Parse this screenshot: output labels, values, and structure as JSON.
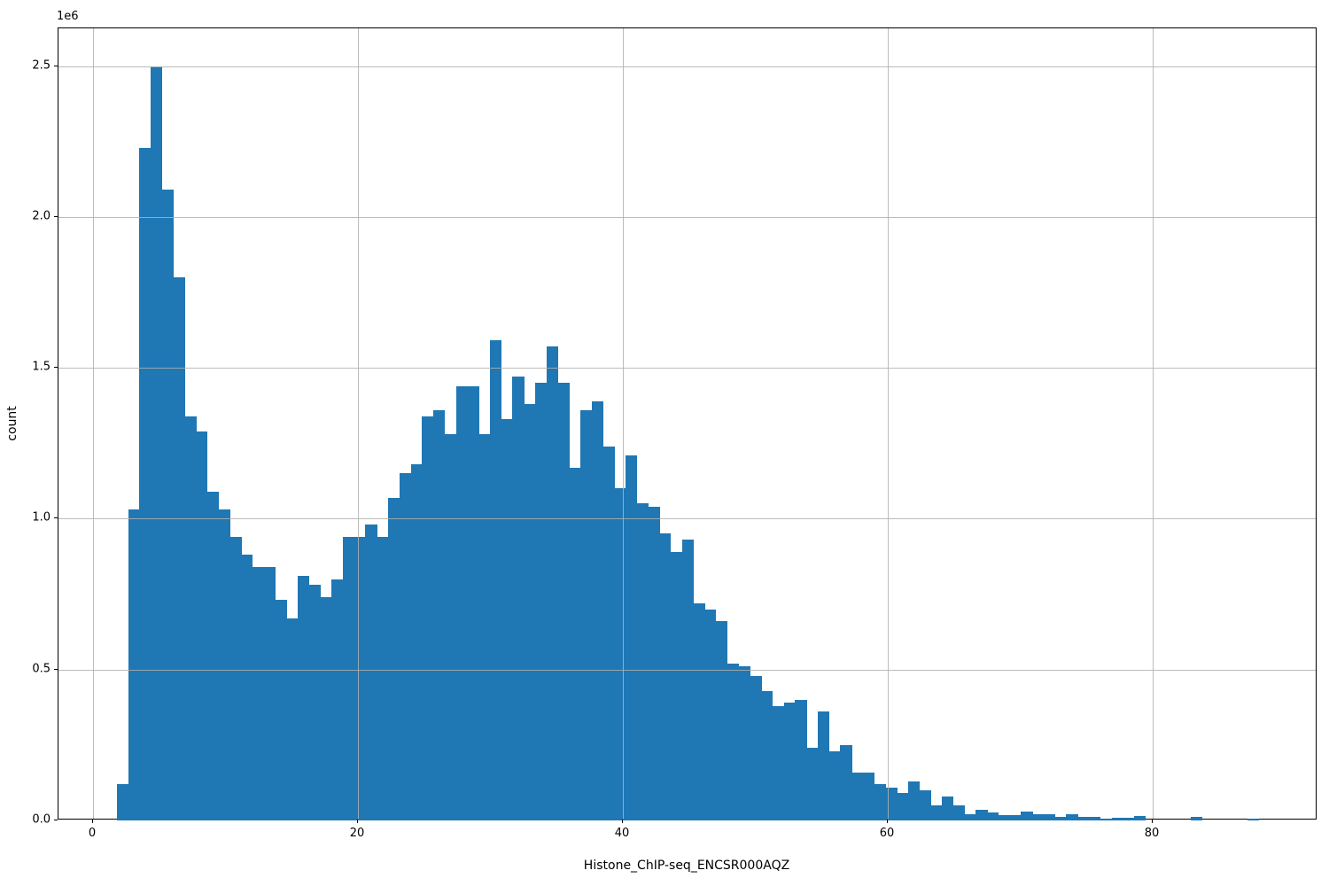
{
  "figure": {
    "background": "#ffffff"
  },
  "chart_data": {
    "type": "bar",
    "subtype": "histogram",
    "title": "",
    "xlabel": "Histone_ChIP-seq_ENCSR000AQZ",
    "ylabel": "count",
    "y_offset_text": "1e6",
    "x_tick_labels": [
      "0",
      "20",
      "40",
      "60",
      "80"
    ],
    "x_tick_values": [
      0,
      20,
      40,
      60,
      80
    ],
    "y_tick_labels": [
      "0.0",
      "0.5",
      "1.0",
      "1.5",
      "2.0",
      "2.5"
    ],
    "y_tick_values_millions": [
      0.0,
      0.5,
      1.0,
      1.5,
      2.0,
      2.5
    ],
    "xlim": [
      -2.61,
      92.44
    ],
    "ylim_millions": [
      0,
      2.625
    ],
    "grid": true,
    "legend_position": "none",
    "bar_color": "#1f77b4",
    "grid_color": "#b0b0b0",
    "spine_color": "#000000",
    "bin_start": 1.79,
    "bin_width": 0.8534,
    "counts_millions": [
      0.12,
      1.03,
      2.23,
      2.5,
      2.09,
      1.8,
      1.34,
      1.29,
      1.09,
      1.03,
      0.94,
      0.88,
      0.84,
      0.84,
      0.73,
      0.67,
      0.81,
      0.78,
      0.74,
      0.8,
      0.94,
      0.94,
      0.98,
      0.94,
      1.07,
      1.15,
      1.18,
      1.34,
      1.36,
      1.28,
      1.44,
      1.44,
      1.28,
      1.59,
      1.33,
      1.47,
      1.38,
      1.45,
      1.57,
      1.45,
      1.17,
      1.36,
      1.39,
      1.24,
      1.1,
      1.21,
      1.05,
      1.04,
      0.95,
      0.89,
      0.93,
      0.72,
      0.7,
      0.66,
      0.52,
      0.51,
      0.48,
      0.43,
      0.38,
      0.39,
      0.4,
      0.24,
      0.36,
      0.23,
      0.25,
      0.16,
      0.16,
      0.12,
      0.11,
      0.09,
      0.13,
      0.1,
      0.05,
      0.08,
      0.05,
      0.02,
      0.035,
      0.026,
      0.019,
      0.019,
      0.028,
      0.02,
      0.02,
      0.012,
      0.022,
      0.013,
      0.012,
      0.006,
      0.008,
      0.01,
      0.016,
      0,
      0,
      0,
      0,
      0.012,
      0,
      0,
      0,
      0,
      0.005
    ]
  }
}
